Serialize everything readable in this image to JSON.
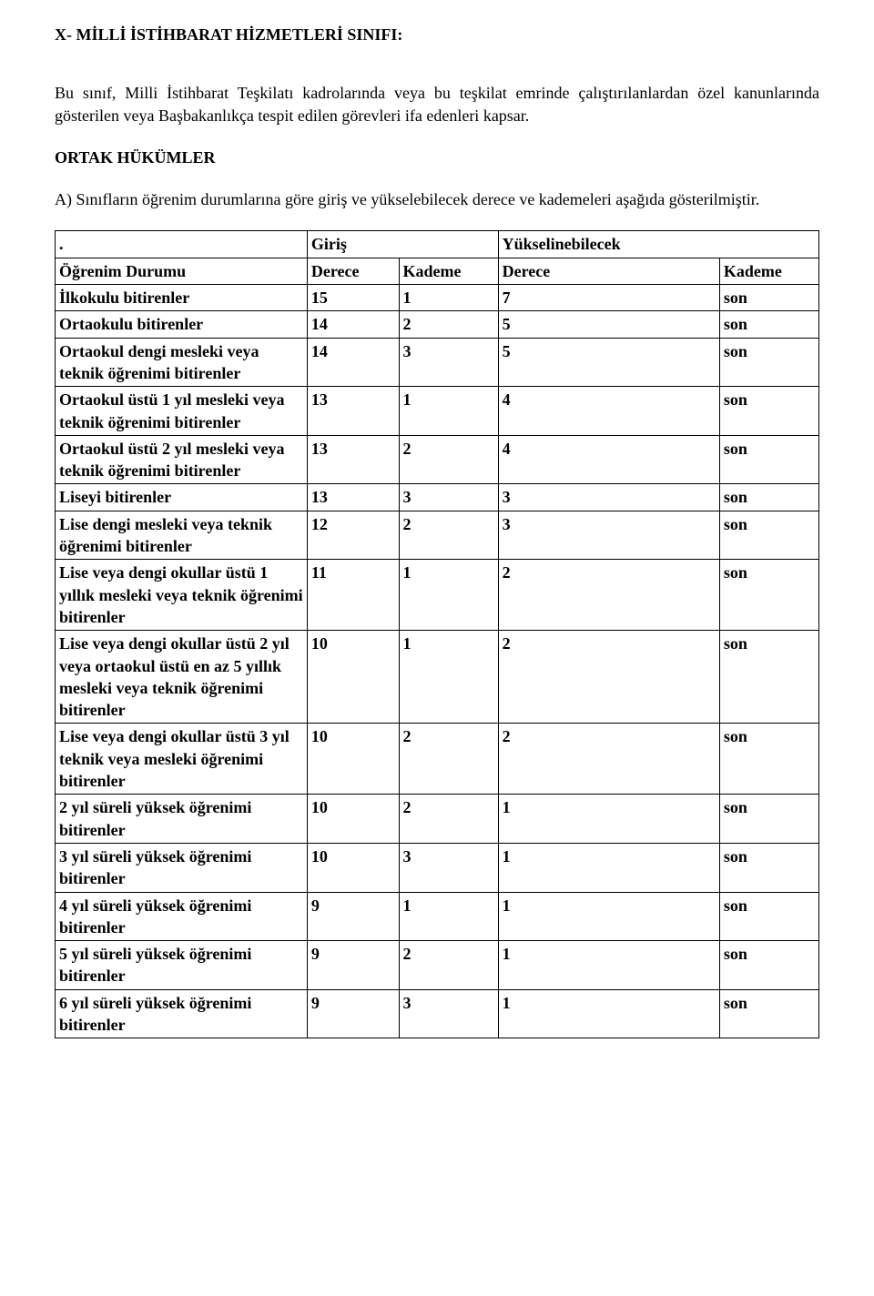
{
  "title": "X- MİLLİ İSTİHBARAT HİZMETLERİ SINIFI:",
  "paragraph": "Bu sınıf, Milli İstihbarat Teşkilatı kadrolarında veya bu teşkilat emrinde çalıştırılanlardan özel kanunlarında gösterilen veya Başbakanlıkça tespit edilen görevleri ifa edenleri kapsar.",
  "sectionHeading": "ORTAK HÜKÜMLER",
  "sectionA": "A) Sınıfların öğrenim durumlarına göre giriş ve yükselebilecek derece ve kademeleri aşağıda gösterilmiştir.",
  "table": {
    "header": {
      "dot": ".",
      "entry": "Giriş",
      "rise": "Yükselinebilecek",
      "status": "Öğrenim Durumu",
      "degree": "Derece",
      "step": "Kademe"
    },
    "rows": [
      {
        "label": "İlkokulu bitirenler",
        "gd": "15",
        "gk": "1",
        "yd": "7",
        "yk": "son"
      },
      {
        "label": "Ortaokulu bitirenler",
        "gd": "14",
        "gk": "2",
        "yd": "5",
        "yk": "son"
      },
      {
        "label": "Ortaokul dengi mesleki veya teknik öğrenimi bitirenler",
        "gd": "14",
        "gk": "3",
        "yd": "5",
        "yk": "son"
      },
      {
        "label": "Ortaokul üstü 1 yıl mesleki veya teknik öğrenimi bitirenler",
        "gd": "13",
        "gk": "1",
        "yd": "4",
        "yk": "son"
      },
      {
        "label": "Ortaokul üstü 2 yıl mesleki veya teknik öğrenimi bitirenler",
        "gd": "13",
        "gk": "2",
        "yd": "4",
        "yk": "son"
      },
      {
        "label": "Liseyi bitirenler",
        "gd": "13",
        "gk": "3",
        "yd": "3",
        "yk": "son"
      },
      {
        "label": "Lise dengi mesleki veya teknik öğrenimi bitirenler",
        "gd": "12",
        "gk": "2",
        "yd": "3",
        "yk": "son"
      },
      {
        "label": "Lise veya dengi okullar üstü 1 yıllık mesleki veya teknik öğrenimi bitirenler",
        "gd": "11",
        "gk": "1",
        "yd": "2",
        "yk": "son"
      },
      {
        "label": "Lise veya dengi okullar üstü 2 yıl veya ortaokul üstü en az 5 yıllık mesleki veya teknik öğrenimi bitirenler",
        "gd": "10",
        "gk": "1",
        "yd": "2",
        "yk": "son"
      },
      {
        "label": "Lise veya dengi okullar üstü 3 yıl teknik veya mesleki öğrenimi bitirenler",
        "gd": "10",
        "gk": "2",
        "yd": "2",
        "yk": "son"
      },
      {
        "label": "2 yıl süreli yüksek öğrenimi bitirenler",
        "gd": "10",
        "gk": "2",
        "yd": "1",
        "yk": "son"
      },
      {
        "label": "3 yıl süreli yüksek öğrenimi bitirenler",
        "gd": "10",
        "gk": "3",
        "yd": "1",
        "yk": "son"
      },
      {
        "label": "4 yıl süreli yüksek öğrenimi bitirenler",
        "gd": "9",
        "gk": "1",
        "yd": "1",
        "yk": "son"
      },
      {
        "label": "5 yıl süreli yüksek öğrenimi bitirenler",
        "gd": "9",
        "gk": "2",
        "yd": "1",
        "yk": "son"
      },
      {
        "label": "6 yıl süreli yüksek öğrenimi bitirenler",
        "gd": "9",
        "gk": "3",
        "yd": "1",
        "yk": "son"
      }
    ]
  }
}
